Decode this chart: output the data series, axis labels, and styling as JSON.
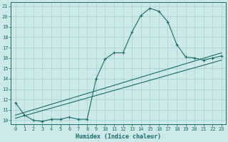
{
  "xlabel": "Humidex (Indice chaleur)",
  "bg_color": "#cce8e8",
  "line_color": "#1a6b6b",
  "grid_color": "#aad4d4",
  "xlim": [
    -0.5,
    23.5
  ],
  "ylim": [
    9.6,
    21.4
  ],
  "yticks": [
    10,
    11,
    12,
    13,
    14,
    15,
    16,
    17,
    18,
    19,
    20,
    21
  ],
  "xticks": [
    0,
    1,
    2,
    3,
    4,
    5,
    6,
    7,
    8,
    9,
    10,
    11,
    12,
    13,
    14,
    15,
    16,
    17,
    18,
    19,
    20,
    21,
    22,
    23
  ],
  "line1_x": [
    0,
    1,
    2,
    3,
    4,
    5,
    6,
    7,
    8,
    9,
    10,
    11,
    12,
    13,
    14,
    15,
    16,
    17,
    18,
    19,
    20,
    21,
    22,
    23
  ],
  "line1_y": [
    11.7,
    10.5,
    10.0,
    9.9,
    10.1,
    10.1,
    10.3,
    10.1,
    10.1,
    14.0,
    15.9,
    16.5,
    16.5,
    18.5,
    20.1,
    20.8,
    20.5,
    19.5,
    17.3,
    16.1,
    16.0,
    15.8,
    16.0,
    16.2
  ],
  "line2_x": [
    0,
    23
  ],
  "line2_y": [
    10.5,
    16.5
  ],
  "line3_x": [
    0,
    23
  ],
  "line3_y": [
    10.2,
    15.8
  ],
  "xlabel_fontsize": 6,
  "tick_fontsize": 5
}
